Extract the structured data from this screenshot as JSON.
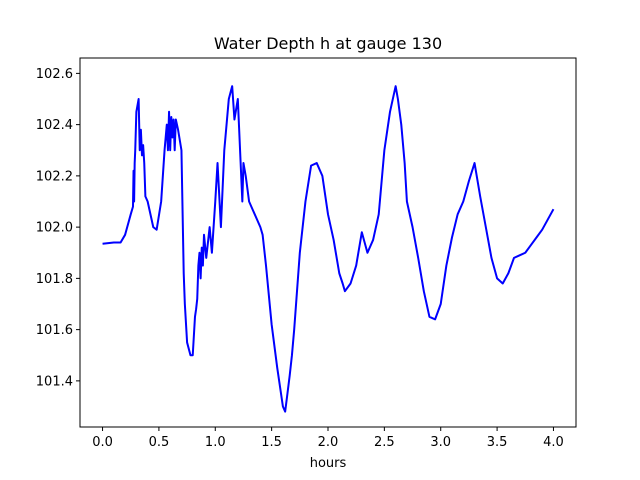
{
  "chart_data": {
    "type": "line",
    "title": "Water Depth h at gauge 130",
    "xlabel": "hours",
    "ylabel": "",
    "xlim": [
      -0.2,
      4.2
    ],
    "ylim": [
      101.22,
      102.66
    ],
    "x_ticks": [
      0.0,
      0.5,
      1.0,
      1.5,
      2.0,
      2.5,
      3.0,
      3.5,
      4.0
    ],
    "x_tick_labels": [
      "0.0",
      "0.5",
      "1.0",
      "1.5",
      "2.0",
      "2.5",
      "3.0",
      "3.5",
      "4.0"
    ],
    "y_ticks": [
      101.4,
      101.6,
      101.8,
      102.0,
      102.2,
      102.4,
      102.6
    ],
    "y_tick_labels": [
      "101.4",
      "101.6",
      "101.8",
      "102.0",
      "102.2",
      "102.4",
      "102.6"
    ],
    "grid": false,
    "series": [
      {
        "color": "#0000ff",
        "x": [
          0.0,
          0.1,
          0.16,
          0.2,
          0.25,
          0.27,
          0.275,
          0.28,
          0.285,
          0.29,
          0.3,
          0.32,
          0.33,
          0.34,
          0.35,
          0.36,
          0.37,
          0.38,
          0.4,
          0.45,
          0.48,
          0.52,
          0.55,
          0.57,
          0.58,
          0.59,
          0.6,
          0.61,
          0.62,
          0.63,
          0.64,
          0.65,
          0.67,
          0.7,
          0.72,
          0.73,
          0.75,
          0.78,
          0.8,
          0.82,
          0.83,
          0.84,
          0.85,
          0.86,
          0.87,
          0.88,
          0.89,
          0.9,
          0.92,
          0.95,
          0.97,
          1.0,
          1.02,
          1.05,
          1.08,
          1.1,
          1.12,
          1.15,
          1.17,
          1.2,
          1.22,
          1.24,
          1.25,
          1.27,
          1.3,
          1.35,
          1.4,
          1.42,
          1.45,
          1.5,
          1.55,
          1.6,
          1.62,
          1.64,
          1.66,
          1.68,
          1.7,
          1.72,
          1.75,
          1.8,
          1.85,
          1.9,
          1.95,
          2.0,
          2.05,
          2.1,
          2.13,
          2.15,
          2.2,
          2.25,
          2.3,
          2.35,
          2.4,
          2.45,
          2.5,
          2.55,
          2.6,
          2.62,
          2.65,
          2.68,
          2.7,
          2.75,
          2.8,
          2.85,
          2.9,
          2.95,
          3.0,
          3.05,
          3.1,
          3.15,
          3.2,
          3.25,
          3.3,
          3.35,
          3.4,
          3.45,
          3.5,
          3.55,
          3.6,
          3.65,
          3.7,
          3.75,
          3.8,
          3.85,
          3.9,
          3.95,
          4.0
        ],
        "y": [
          101.935,
          101.94,
          101.94,
          101.97,
          102.05,
          102.08,
          102.22,
          102.1,
          102.25,
          102.3,
          102.45,
          102.5,
          102.3,
          102.38,
          102.28,
          102.32,
          102.25,
          102.12,
          102.1,
          102.0,
          101.99,
          102.1,
          102.3,
          102.4,
          102.3,
          102.45,
          102.3,
          102.43,
          102.35,
          102.42,
          102.3,
          102.42,
          102.38,
          102.3,
          101.82,
          101.7,
          101.55,
          101.5,
          101.5,
          101.65,
          101.68,
          101.72,
          101.85,
          101.9,
          101.8,
          101.92,
          101.85,
          101.97,
          101.88,
          102.0,
          101.9,
          102.1,
          102.25,
          102.0,
          102.3,
          102.4,
          102.5,
          102.55,
          102.42,
          102.5,
          102.3,
          102.1,
          102.25,
          102.2,
          102.1,
          102.05,
          102.0,
          101.97,
          101.85,
          101.62,
          101.45,
          101.3,
          101.28,
          101.35,
          101.42,
          101.5,
          101.6,
          101.72,
          101.9,
          102.1,
          102.24,
          102.25,
          102.2,
          102.05,
          101.95,
          101.82,
          101.78,
          101.75,
          101.78,
          101.85,
          101.98,
          101.9,
          101.95,
          102.05,
          102.3,
          102.45,
          102.55,
          102.5,
          102.4,
          102.25,
          102.1,
          102.0,
          101.88,
          101.75,
          101.65,
          101.64,
          101.7,
          101.85,
          101.96,
          102.05,
          102.1,
          102.18,
          102.25,
          102.12,
          102.0,
          101.88,
          101.8,
          101.78,
          101.82,
          101.88,
          101.89,
          101.9,
          101.93,
          101.96,
          101.99,
          102.03,
          102.07
        ]
      }
    ]
  }
}
